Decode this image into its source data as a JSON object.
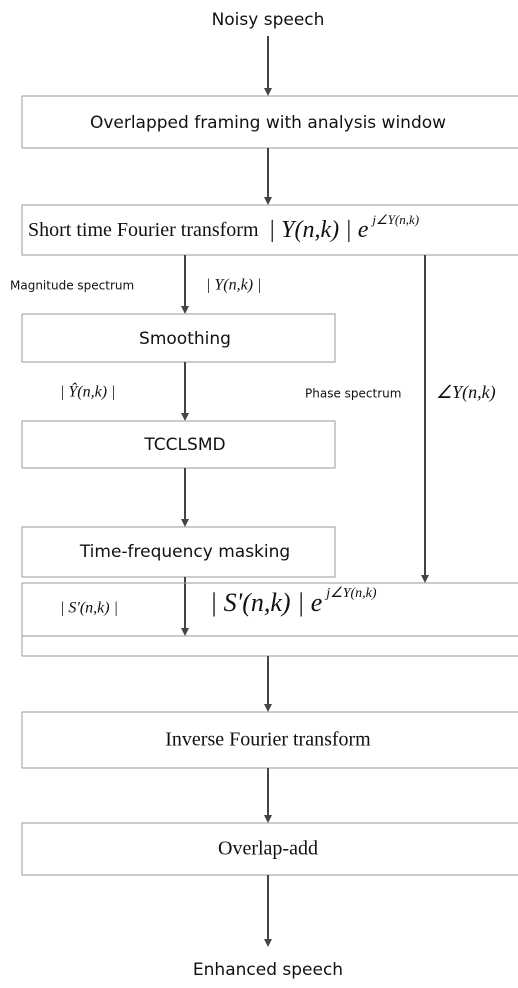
{
  "input": "Noisy speech",
  "output": "Enhanced speech",
  "nodes": [
    "Overlapped framing with analysis window",
    "Smoothing",
    "TCCLSMD",
    "Time-frequency masking",
    "Inverse Fourier transform",
    "Overlap-add"
  ],
  "stft": {
    "label": "Short time Fourier transform",
    "formula": "| Y(n,k) | e",
    "exponent": "j∠Y(n,k)"
  },
  "magnitude": {
    "label": "Magnitude spectrum",
    "formula": "| Y(n,k) |"
  },
  "smoothed": "| Ŷ(n,k) |",
  "phase": {
    "label": "Phase spectrum",
    "formula": "∠Y(n,k)"
  },
  "masked": "| S'(n,k) |",
  "reconstruct": {
    "formula": "| S'(n,k) | e",
    "exponent": "j∠Y(n,k)"
  }
}
